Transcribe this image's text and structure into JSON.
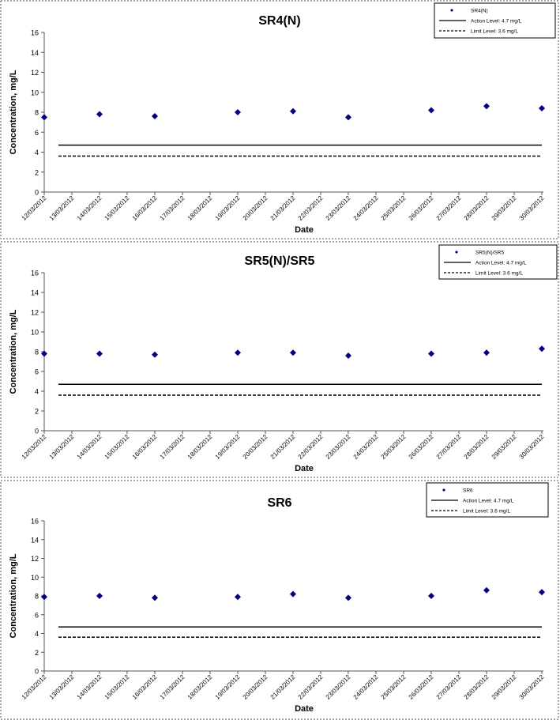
{
  "chart_data": [
    {
      "type": "scatter",
      "title": "SR4(N)",
      "xlabel": "Date",
      "ylabel": "Concentration, mg/L",
      "ylim": [
        0,
        16
      ],
      "yticks": [
        0,
        2,
        4,
        6,
        8,
        10,
        12,
        14,
        16
      ],
      "grid": false,
      "legend_position": "top-right",
      "dates": [
        "12/03/2012",
        "13/03/2012",
        "14/03/2012",
        "15/03/2012",
        "16/03/2012",
        "17/03/2012",
        "18/03/2012",
        "19/03/2012",
        "20/03/2012",
        "21/03/2012",
        "22/03/2012",
        "23/03/2012",
        "24/03/2012",
        "25/03/2012",
        "26/03/2012",
        "27/03/2012",
        "28/03/2012",
        "29/03/2012",
        "30/03/2012"
      ],
      "series": [
        {
          "name": "SR4(N)",
          "kind": "points",
          "color": "#000080",
          "points": [
            {
              "x": "12/03/2012",
              "y": 7.5
            },
            {
              "x": "14/03/2012",
              "y": 7.8
            },
            {
              "x": "16/03/2012",
              "y": 7.6
            },
            {
              "x": "19/03/2012",
              "y": 8.0
            },
            {
              "x": "21/03/2012",
              "y": 8.1
            },
            {
              "x": "23/03/2012",
              "y": 7.5
            },
            {
              "x": "26/03/2012",
              "y": 8.2
            },
            {
              "x": "28/03/2012",
              "y": 8.6
            },
            {
              "x": "30/03/2012",
              "y": 8.4
            }
          ]
        },
        {
          "name": "Action Level: 4.7 mg/L",
          "kind": "solid-line",
          "color": "#000000",
          "value": 4.7
        },
        {
          "name": "Limit Level: 3.6 mg/L",
          "kind": "dashed-line",
          "color": "#000000",
          "value": 3.6
        }
      ]
    },
    {
      "type": "scatter",
      "title": "SR5(N)/SR5",
      "xlabel": "Date",
      "ylabel": "Concentration, mg/L",
      "ylim": [
        0,
        16
      ],
      "yticks": [
        0,
        2,
        4,
        6,
        8,
        10,
        12,
        14,
        16
      ],
      "grid": false,
      "legend_position": "top-right",
      "dates": [
        "12/03/2012",
        "13/03/2012",
        "14/03/2012",
        "15/03/2012",
        "16/03/2012",
        "17/03/2012",
        "18/03/2012",
        "19/03/2012",
        "20/03/2012",
        "21/03/2012",
        "22/03/2012",
        "23/03/2012",
        "24/03/2012",
        "25/03/2012",
        "26/03/2012",
        "27/03/2012",
        "28/03/2012",
        "29/03/2012",
        "30/03/2012"
      ],
      "series": [
        {
          "name": "SR5(N)/SR5",
          "kind": "points",
          "color": "#000080",
          "points": [
            {
              "x": "12/03/2012",
              "y": 7.8
            },
            {
              "x": "14/03/2012",
              "y": 7.8
            },
            {
              "x": "16/03/2012",
              "y": 7.7
            },
            {
              "x": "19/03/2012",
              "y": 7.9
            },
            {
              "x": "21/03/2012",
              "y": 7.9
            },
            {
              "x": "23/03/2012",
              "y": 7.6
            },
            {
              "x": "26/03/2012",
              "y": 7.8
            },
            {
              "x": "28/03/2012",
              "y": 7.9
            },
            {
              "x": "30/03/2012",
              "y": 8.3
            }
          ]
        },
        {
          "name": "Action Level: 4.7 mg/L",
          "kind": "solid-line",
          "color": "#000000",
          "value": 4.7
        },
        {
          "name": "Limit Level: 3.6 mg/L",
          "kind": "dashed-line",
          "color": "#000000",
          "value": 3.6
        }
      ]
    },
    {
      "type": "scatter",
      "title": "SR6",
      "xlabel": "Date",
      "ylabel": "Concentration, mg/L",
      "ylim": [
        0,
        16
      ],
      "yticks": [
        0,
        2,
        4,
        6,
        8,
        10,
        12,
        14,
        16
      ],
      "grid": false,
      "legend_position": "top-right",
      "dates": [
        "12/03/2012",
        "13/03/2012",
        "14/03/2012",
        "15/03/2012",
        "16/03/2012",
        "17/03/2012",
        "18/03/2012",
        "19/03/2012",
        "20/03/2012",
        "21/03/2012",
        "22/03/2012",
        "23/03/2012",
        "24/03/2012",
        "25/03/2012",
        "26/03/2012",
        "27/03/2012",
        "28/03/2012",
        "29/03/2012",
        "30/03/2012"
      ],
      "series": [
        {
          "name": "SR6",
          "kind": "points",
          "color": "#000080",
          "points": [
            {
              "x": "12/03/2012",
              "y": 7.9
            },
            {
              "x": "14/03/2012",
              "y": 8.0
            },
            {
              "x": "16/03/2012",
              "y": 7.8
            },
            {
              "x": "19/03/2012",
              "y": 7.9
            },
            {
              "x": "21/03/2012",
              "y": 8.2
            },
            {
              "x": "23/03/2012",
              "y": 7.8
            },
            {
              "x": "26/03/2012",
              "y": 8.0
            },
            {
              "x": "28/03/2012",
              "y": 8.6
            },
            {
              "x": "30/03/2012",
              "y": 8.4
            }
          ]
        },
        {
          "name": "Action Level: 4.7 mg/L",
          "kind": "solid-line",
          "color": "#000000",
          "value": 4.7
        },
        {
          "name": "Limit Level: 3.6 mg/L",
          "kind": "dashed-line",
          "color": "#000000",
          "value": 3.6
        }
      ]
    }
  ]
}
